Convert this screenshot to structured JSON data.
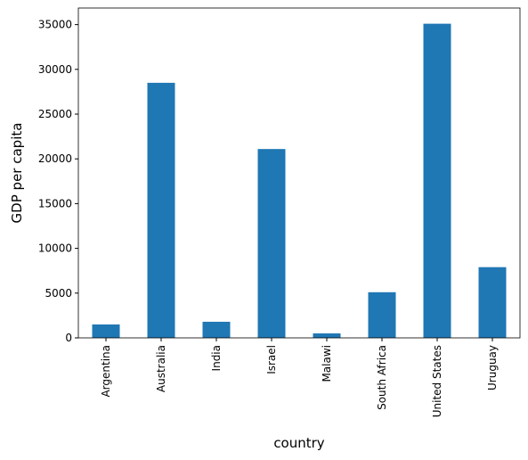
{
  "chart_data": {
    "type": "bar",
    "categories": [
      "Argentina",
      "Australia",
      "India",
      "Israel",
      "Malawi",
      "South Africa",
      "United States",
      "Uruguay"
    ],
    "values": [
      1500,
      28500,
      1800,
      21100,
      500,
      5100,
      35100,
      7900
    ],
    "color": "#1f77b4",
    "xlabel": "country",
    "ylabel": "GDP per capita",
    "ylim": [
      0,
      36855
    ],
    "yticks": [
      0,
      5000,
      10000,
      15000,
      20000,
      25000,
      30000,
      35000
    ],
    "grid": false
  }
}
